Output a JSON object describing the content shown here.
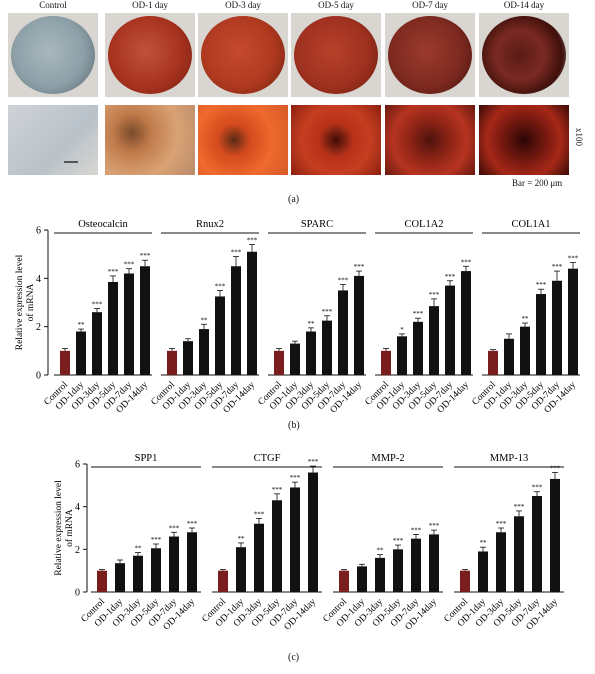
{
  "panel_a": {
    "columns": [
      "Control",
      "OD-1 day",
      "OD-3 day",
      "OD-5 day",
      "OD-7 day",
      "OD-14 day"
    ],
    "magnification": "x100",
    "scale_bar": "Bar = 200 μm",
    "letter": "(a)"
  },
  "panel_b_letter": "(b)",
  "panel_c_letter": "(c)",
  "colors": {
    "control": "#7a1d1d",
    "treated": "#111111"
  },
  "chart_data": [
    {
      "type": "bar",
      "ylabel": "Relative expression level of mRNA",
      "ylim": [
        0,
        6
      ],
      "yticks": [
        0,
        2,
        4,
        6
      ],
      "categories": [
        "Control",
        "OD-1day",
        "OD-3day",
        "OD-5day",
        "OD-7day",
        "OD-14day"
      ],
      "groups": [
        {
          "name": "Osteocalcin",
          "values": [
            1.0,
            1.8,
            2.6,
            3.85,
            4.2,
            4.5
          ],
          "errors": [
            0.1,
            0.1,
            0.15,
            0.25,
            0.2,
            0.25
          ],
          "sig": [
            "",
            "**",
            "***",
            "***",
            "***",
            "***"
          ]
        },
        {
          "name": "Rnux2",
          "values": [
            1.0,
            1.4,
            1.9,
            3.25,
            4.5,
            5.1
          ],
          "errors": [
            0.1,
            0.1,
            0.2,
            0.25,
            0.4,
            0.3
          ],
          "sig": [
            "",
            "",
            "**",
            "***",
            "***",
            "***"
          ]
        },
        {
          "name": "SPARC",
          "values": [
            1.0,
            1.3,
            1.8,
            2.25,
            3.5,
            4.1
          ],
          "errors": [
            0.1,
            0.1,
            0.15,
            0.2,
            0.25,
            0.2
          ],
          "sig": [
            "",
            "",
            "**",
            "***",
            "***",
            "***"
          ]
        },
        {
          "name": "COL1A2",
          "values": [
            1.0,
            1.6,
            2.2,
            2.85,
            3.7,
            4.3
          ],
          "errors": [
            0.1,
            0.1,
            0.15,
            0.3,
            0.2,
            0.2
          ],
          "sig": [
            "",
            "*",
            "***",
            "***",
            "***",
            "***"
          ]
        },
        {
          "name": "COL1A1",
          "values": [
            1.0,
            1.5,
            2.0,
            3.35,
            3.9,
            4.4
          ],
          "errors": [
            0.05,
            0.2,
            0.15,
            0.2,
            0.4,
            0.25
          ],
          "sig": [
            "",
            "",
            "**",
            "***",
            "***",
            "***"
          ]
        }
      ]
    },
    {
      "type": "bar",
      "ylabel": "Relative expression level of mRNA",
      "ylim": [
        0,
        6
      ],
      "yticks": [
        0,
        2,
        4,
        6
      ],
      "categories": [
        "Control",
        "OD-1day",
        "OD-3day",
        "OD-5day",
        "OD-7day",
        "OD-14day"
      ],
      "groups": [
        {
          "name": "SPP1",
          "values": [
            1.0,
            1.35,
            1.7,
            2.05,
            2.6,
            2.8
          ],
          "errors": [
            0.05,
            0.15,
            0.15,
            0.2,
            0.2,
            0.2
          ],
          "sig": [
            "",
            "",
            "**",
            "***",
            "***",
            "***"
          ]
        },
        {
          "name": "CTGF",
          "values": [
            1.0,
            2.1,
            3.2,
            4.3,
            4.9,
            5.6
          ],
          "errors": [
            0.05,
            0.2,
            0.25,
            0.3,
            0.25,
            0.3
          ],
          "sig": [
            "",
            "**",
            "***",
            "***",
            "***",
            "***"
          ]
        },
        {
          "name": "MMP-2",
          "values": [
            1.0,
            1.2,
            1.6,
            2.0,
            2.5,
            2.7
          ],
          "errors": [
            0.05,
            0.1,
            0.15,
            0.2,
            0.2,
            0.2
          ],
          "sig": [
            "",
            "",
            "**",
            "***",
            "***",
            "***"
          ]
        },
        {
          "name": "MMP-13",
          "values": [
            1.0,
            1.9,
            2.8,
            3.55,
            4.5,
            5.3
          ],
          "errors": [
            0.05,
            0.2,
            0.2,
            0.25,
            0.2,
            0.3
          ],
          "sig": [
            "",
            "**",
            "***",
            "***",
            "***",
            "***"
          ]
        }
      ]
    }
  ]
}
